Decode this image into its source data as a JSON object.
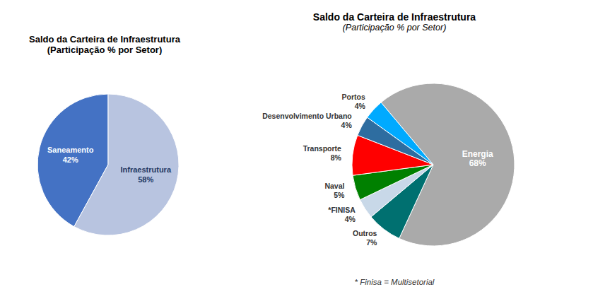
{
  "chart_data": [
    {
      "type": "pie",
      "title": "Saldo da Carteira de Infraestrutura\n(Participação % por Setor)",
      "categories": [
        "Saneamento",
        "Infraestrutura"
      ],
      "values": [
        42,
        58
      ],
      "value_labels": [
        "42%",
        "58%"
      ],
      "colors": [
        "#4472C4",
        "#B8C4E0"
      ],
      "data_labels": true
    },
    {
      "type": "pie",
      "title": "Saldo da Carteira de Infraestrutura",
      "subtitle": "(Participação % por Setor)",
      "categories": [
        "Energia",
        "Outros",
        "FINISA",
        "Naval",
        "Transporte",
        "Desenvolvimento Urbano",
        "Portos"
      ],
      "values": [
        68,
        7,
        4,
        5,
        8,
        4,
        4
      ],
      "value_labels": [
        "68%",
        "7%",
        "4%",
        "5%",
        "8%",
        "4%",
        "4%"
      ],
      "colors": [
        "#AAAAAA",
        "#007070",
        "#C8D8E8",
        "#008000",
        "#FF0000",
        "#2E6DA0",
        "#00AAFF"
      ],
      "data_labels": true,
      "annotations": [
        {
          "text": "*",
          "category": "FINISA"
        },
        {
          "text": "* Finisa = Multisetorial"
        }
      ]
    }
  ]
}
